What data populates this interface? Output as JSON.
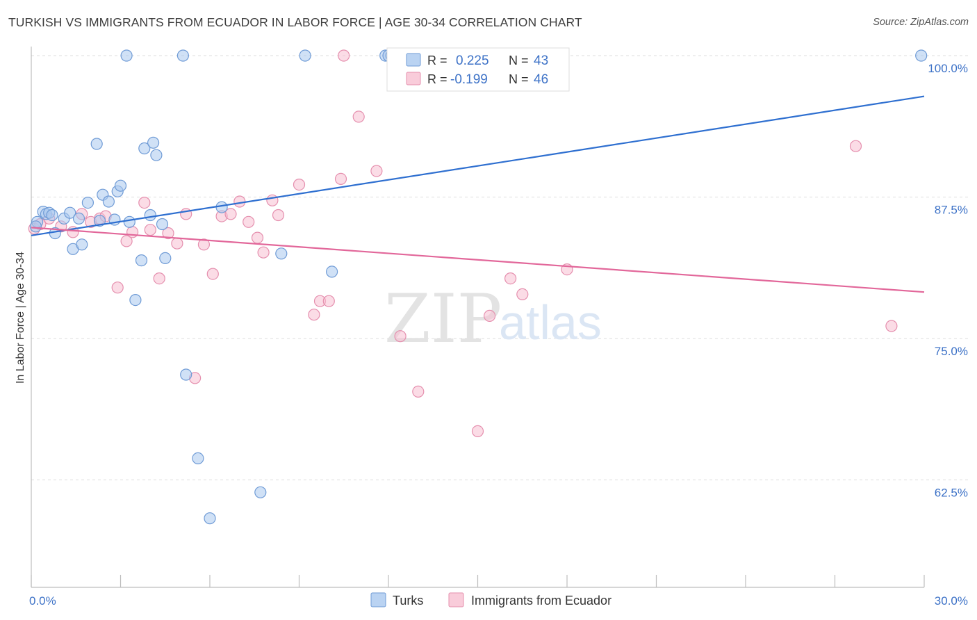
{
  "header": {
    "title": "TURKISH VS IMMIGRANTS FROM ECUADOR IN LABOR FORCE | AGE 30-34 CORRELATION CHART",
    "source": "Source: ZipAtlas.com"
  },
  "watermark": {
    "zip": "ZIP",
    "atlas": "atlas"
  },
  "colors": {
    "turks_fill": "#a9c8ef",
    "turks_stroke": "#6f9bd6",
    "turks_line": "#2e6fd0",
    "ecuador_fill": "#f7bfd1",
    "ecuador_stroke": "#e58fae",
    "ecuador_line": "#e2679a",
    "axis_text": "#3d72c7",
    "grid": "#dcdcdc"
  },
  "legend": {
    "rows": [
      {
        "r_label": "R =",
        "r_value": "0.225",
        "n_label": "N =",
        "n_value": "43"
      },
      {
        "r_label": "R =",
        "r_value": "-0.199",
        "n_label": "N =",
        "n_value": "46"
      }
    ]
  },
  "bottom_legend": {
    "turks": "Turks",
    "ecuador": "Immigrants from Ecuador"
  },
  "chart_data": {
    "type": "scatter",
    "title": "TURKISH VS IMMIGRANTS FROM ECUADOR IN LABOR FORCE | AGE 30-34 CORRELATION CHART",
    "ylabel": "In Labor Force | Age 30-34",
    "xlabel": "",
    "xlim": [
      0,
      30
    ],
    "ylim": [
      53,
      101
    ],
    "x_tick_labels": [
      "0.0%",
      "30.0%"
    ],
    "y_ticks": [
      100,
      87.5,
      75,
      62.5
    ],
    "y_tick_labels": [
      "100.0%",
      "87.5%",
      "75.0%",
      "62.5%"
    ],
    "grid": true,
    "legend_position": "top-center",
    "series": [
      {
        "name": "Turks",
        "r": 0.225,
        "n": 43,
        "trend": [
          [
            0,
            84.1
          ],
          [
            30,
            96.4
          ]
        ],
        "points": [
          [
            0.2,
            85.3
          ],
          [
            0.4,
            86.2
          ],
          [
            0.5,
            86.0
          ],
          [
            0.6,
            86.1
          ],
          [
            0.7,
            85.9
          ],
          [
            0.8,
            84.3
          ],
          [
            1.1,
            85.6
          ],
          [
            1.3,
            86.1
          ],
          [
            1.4,
            82.9
          ],
          [
            1.6,
            85.6
          ],
          [
            1.7,
            83.3
          ],
          [
            1.9,
            87.0
          ],
          [
            2.2,
            92.2
          ],
          [
            2.3,
            85.4
          ],
          [
            2.4,
            87.7
          ],
          [
            2.6,
            87.1
          ],
          [
            2.8,
            85.5
          ],
          [
            2.9,
            88.0
          ],
          [
            3.0,
            88.5
          ],
          [
            3.2,
            100
          ],
          [
            3.3,
            85.3
          ],
          [
            3.5,
            78.4
          ],
          [
            3.7,
            81.9
          ],
          [
            3.8,
            91.8
          ],
          [
            4.0,
            85.9
          ],
          [
            4.1,
            92.3
          ],
          [
            4.2,
            91.2
          ],
          [
            4.4,
            85.1
          ],
          [
            4.5,
            82.1
          ],
          [
            5.1,
            100
          ],
          [
            5.2,
            71.8
          ],
          [
            5.6,
            64.4
          ],
          [
            6.0,
            59.1
          ],
          [
            6.4,
            86.6
          ],
          [
            7.7,
            61.4
          ],
          [
            8.4,
            82.5
          ],
          [
            9.2,
            100
          ],
          [
            10.1,
            80.9
          ],
          [
            11.9,
            100
          ],
          [
            12.0,
            100
          ],
          [
            12.1,
            100
          ],
          [
            29.9,
            100
          ],
          [
            0.15,
            84.9
          ]
        ]
      },
      {
        "name": "Immigrants from Ecuador",
        "r": -0.199,
        "n": 46,
        "trend": [
          [
            0,
            84.8
          ],
          [
            30,
            79.1
          ]
        ],
        "points": [
          [
            0.1,
            84.7
          ],
          [
            0.3,
            85.1
          ],
          [
            0.6,
            85.6
          ],
          [
            1.0,
            84.9
          ],
          [
            1.4,
            84.4
          ],
          [
            1.7,
            86.0
          ],
          [
            2.0,
            85.3
          ],
          [
            2.3,
            85.6
          ],
          [
            2.5,
            85.8
          ],
          [
            2.9,
            79.5
          ],
          [
            3.2,
            83.6
          ],
          [
            3.4,
            84.4
          ],
          [
            3.8,
            87.0
          ],
          [
            4.0,
            84.6
          ],
          [
            4.3,
            80.3
          ],
          [
            4.6,
            84.3
          ],
          [
            4.9,
            83.4
          ],
          [
            5.2,
            86.0
          ],
          [
            5.5,
            71.5
          ],
          [
            5.8,
            83.3
          ],
          [
            6.1,
            80.7
          ],
          [
            6.4,
            85.8
          ],
          [
            6.7,
            86.0
          ],
          [
            7.0,
            87.1
          ],
          [
            7.3,
            85.3
          ],
          [
            7.6,
            83.9
          ],
          [
            7.8,
            82.6
          ],
          [
            8.1,
            87.2
          ],
          [
            8.3,
            85.9
          ],
          [
            9.0,
            88.6
          ],
          [
            9.5,
            77.1
          ],
          [
            9.7,
            78.3
          ],
          [
            10.0,
            78.3
          ],
          [
            10.4,
            89.1
          ],
          [
            10.5,
            100
          ],
          [
            11.0,
            94.6
          ],
          [
            11.6,
            89.8
          ],
          [
            12.4,
            75.2
          ],
          [
            13.0,
            70.3
          ],
          [
            15.0,
            66.8
          ],
          [
            15.4,
            77.0
          ],
          [
            16.1,
            80.3
          ],
          [
            16.5,
            78.9
          ],
          [
            18.0,
            81.1
          ],
          [
            27.7,
            92.0
          ],
          [
            28.9,
            76.1
          ]
        ]
      }
    ]
  }
}
